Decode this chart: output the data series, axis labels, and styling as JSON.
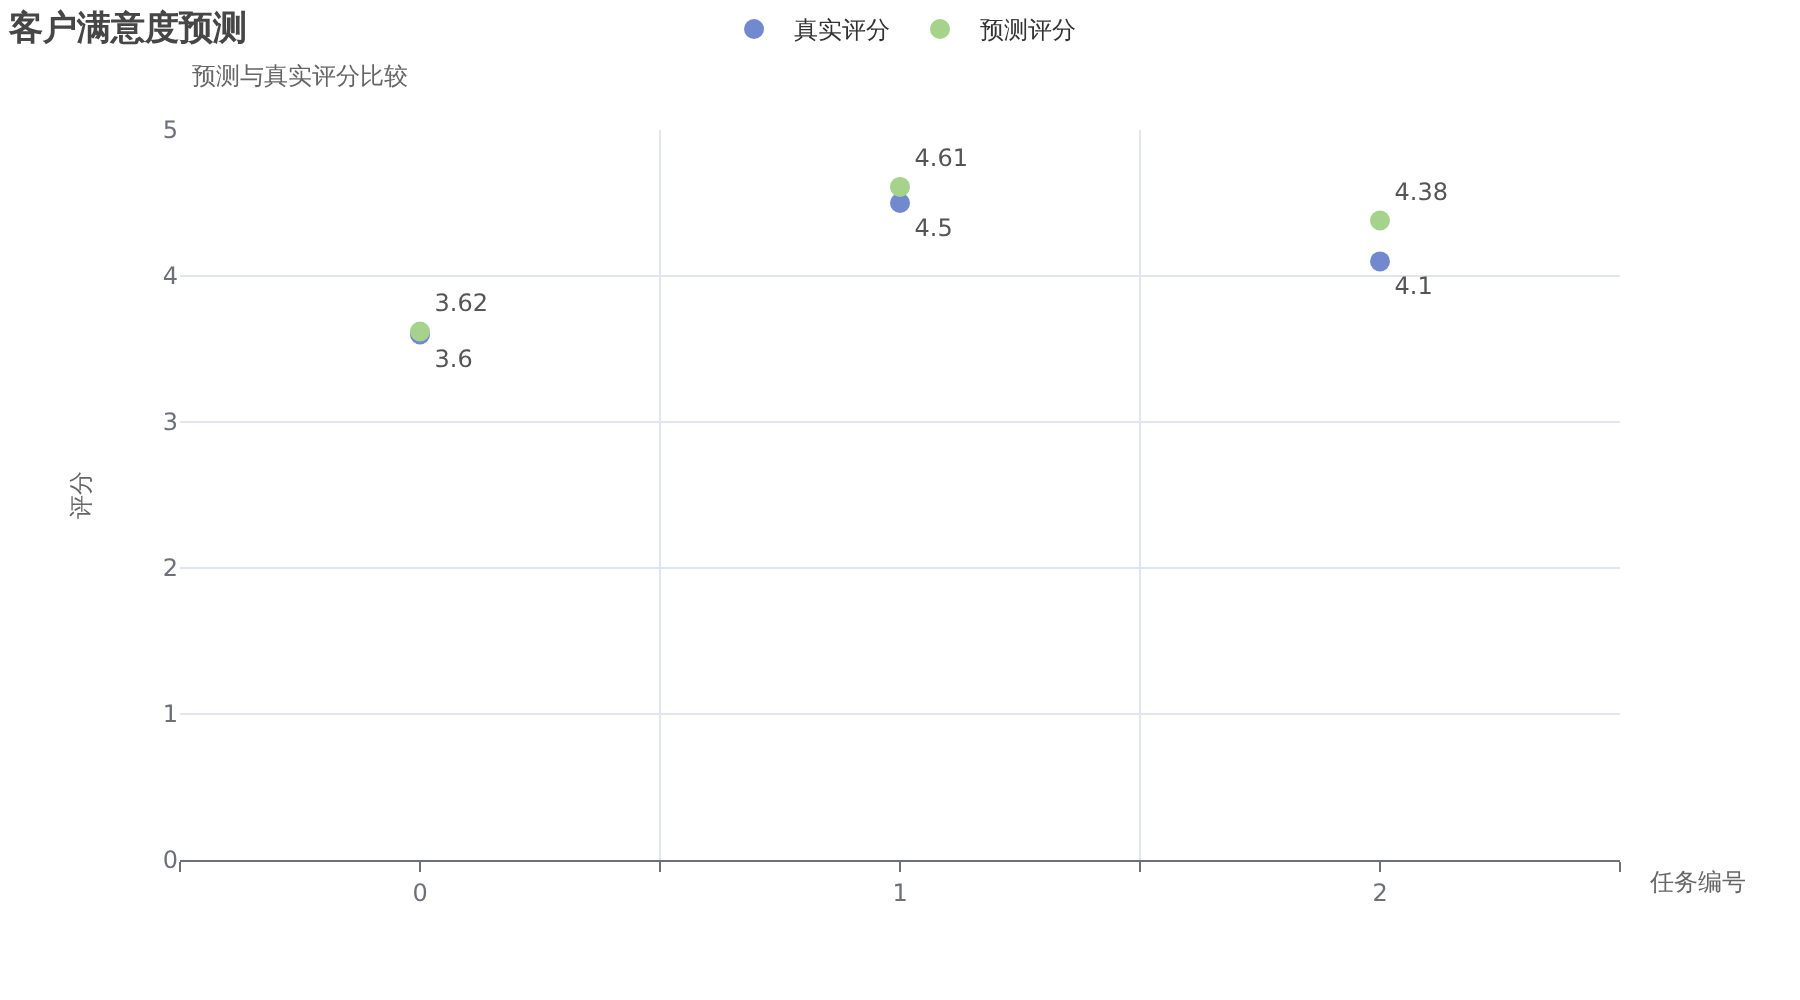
{
  "chart_data": {
    "type": "scatter",
    "title": "客户满意度预测",
    "subtitle": "预测与真实评分比较",
    "xlabel": "任务编号",
    "ylabel": "评分",
    "categories": [
      "0",
      "1",
      "2"
    ],
    "series": [
      {
        "name": "真实评分",
        "color": "#7289cf",
        "values": [
          3.6,
          4.5,
          4.1
        ]
      },
      {
        "name": "预测评分",
        "color": "#a5d38c",
        "values": [
          3.62,
          4.61,
          4.38
        ]
      }
    ],
    "ylim": [
      0,
      5
    ],
    "yticks": [
      0,
      1,
      2,
      3,
      4,
      5
    ],
    "grid": true,
    "legend": "top",
    "marker": "circle",
    "data_labels": true
  }
}
